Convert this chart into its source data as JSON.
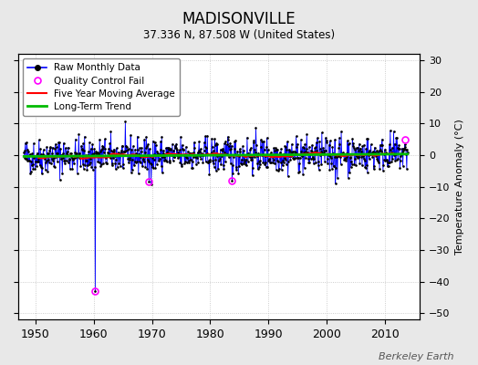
{
  "title": "MADISONVILLE",
  "subtitle": "37.336 N, 87.508 W (United States)",
  "ylabel": "Temperature Anomaly (°C)",
  "xlabel_credit": "Berkeley Earth",
  "ylim": [
    -52,
    32
  ],
  "xlim": [
    1947,
    2016
  ],
  "yticks": [
    -50,
    -40,
    -30,
    -20,
    -10,
    0,
    10,
    20,
    30
  ],
  "xticks": [
    1950,
    1960,
    1970,
    1980,
    1990,
    2000,
    2010
  ],
  "start_year": 1948,
  "end_year": 2014,
  "seed": 42,
  "bg_color": "#e8e8e8",
  "plot_bg_color": "#ffffff",
  "raw_color": "#0000ff",
  "ma_color": "#ff0000",
  "trend_color": "#00bb00",
  "qc_fail_color": "#ff00ff",
  "anomaly_amplitude": 2.8,
  "trend_slope": 0.012,
  "spike_year1": 1960.25,
  "spike_val1": -43,
  "spike_year2": 1969.5,
  "spike_val2": -8.5,
  "spike_year3": 1983.75,
  "spike_val3": -8.0,
  "spike_year4": 2001.5,
  "spike_val4": -9.0,
  "qc_times": [
    1960.25,
    1969.5,
    1983.75,
    2013.5
  ],
  "qc_vals": [
    -43,
    -8.5,
    -8.0,
    5.0
  ],
  "legend_loc": "upper left"
}
